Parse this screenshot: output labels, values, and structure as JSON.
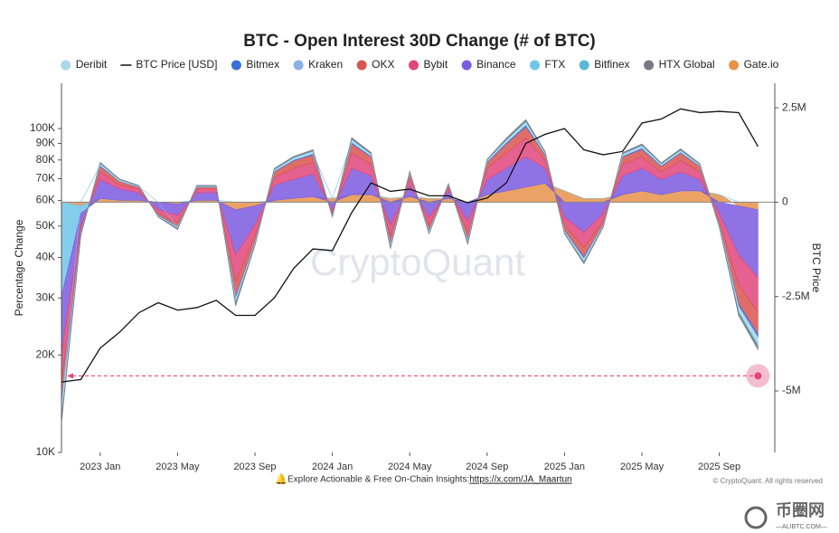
{
  "chart_data": {
    "type": "area",
    "title": "BTC - Open Interest 30D Change (# of BTC)",
    "y_label": "Percentage Change",
    "y2_label": "BTC Price",
    "watermark": "CryptoQuant",
    "footnote": "Explore Actionable & Free On-Chain Insights: ",
    "footnote_link": "https://x.com/JA_Maartun",
    "copyright": "© CryptoQuant. All rights reserved",
    "logo": "币圈网",
    "logo_sub": "—ALIBTC.COM—",
    "log_y": true,
    "grid": false,
    "x": [
      "2022 Nov",
      "2022 Dec",
      "2023 Jan",
      "2023 Feb",
      "2023 Mar",
      "2023 Apr",
      "2023 May",
      "2023 Jun",
      "2023 Jul",
      "2023 Aug",
      "2023 Sep",
      "2023 Oct",
      "2023 Nov",
      "2023 Dec",
      "2024 Jan",
      "2024 Feb",
      "2024 Mar",
      "2024 Apr",
      "2024 May",
      "2024 Jun",
      "2024 Jul",
      "2024 Aug",
      "2024 Sep",
      "2024 Oct",
      "2024 Nov",
      "2024 Dec",
      "2025 Jan",
      "2025 Feb",
      "2025 Mar",
      "2025 Apr",
      "2025 May",
      "2025 Jun",
      "2025 Jul",
      "2025 Aug",
      "2025 Sep",
      "2025 Oct",
      "2025 Nov"
    ],
    "xticks": [
      "2023 Jan",
      "2023 May",
      "2023 Sep",
      "2024 Jan",
      "2024 May",
      "2024 Sep",
      "2025 Jan",
      "2025 May",
      "2025 Sep"
    ],
    "ylim": [
      10000,
      138000
    ],
    "yticks": [
      {
        "value": 10000,
        "label": "10K"
      },
      {
        "value": 20000,
        "label": "20K"
      },
      {
        "value": 30000,
        "label": "30K"
      },
      {
        "value": 40000,
        "label": "40K"
      },
      {
        "value": 50000,
        "label": "50K"
      },
      {
        "value": 60000,
        "label": "60K"
      },
      {
        "value": 70000,
        "label": "70K"
      },
      {
        "value": 80000,
        "label": "80K"
      },
      {
        "value": 90000,
        "label": "90K"
      },
      {
        "value": 100000,
        "label": "100K"
      }
    ],
    "y2lim": [
      -6630000,
      3150000
    ],
    "y2ticks": [
      {
        "value": 2500000,
        "label": "2.5M"
      },
      0,
      {
        "value": -2500000,
        "label": "-2.5M"
      },
      {
        "value": -5000000,
        "label": "-5M"
      }
    ],
    "reference_line": {
      "axis": "y2",
      "value": -4600000,
      "color": "#e0457b"
    },
    "series": [
      {
        "name": "Deribit",
        "color": "#a8d8ea",
        "axis": "y2",
        "values": [
          -300000,
          -50000,
          50000,
          30000,
          20000,
          -20000,
          -30000,
          20000,
          20000,
          -100000,
          -50000,
          40000,
          50000,
          60000,
          -20000,
          70000,
          50000,
          -60000,
          30000,
          -40000,
          20000,
          -50000,
          40000,
          60000,
          80000,
          40000,
          -40000,
          -80000,
          -30000,
          50000,
          60000,
          40000,
          50000,
          30000,
          -30000,
          -130000,
          -180000
        ]
      },
      {
        "name": "BTC Price [USD]",
        "color": "#111111",
        "type": "line",
        "axis": "y",
        "values": [
          16500,
          16800,
          21000,
          23500,
          27000,
          29000,
          27500,
          28000,
          29500,
          26500,
          26500,
          30000,
          37000,
          42500,
          42000,
          55000,
          68000,
          64000,
          65000,
          62000,
          62000,
          59000,
          61000,
          68000,
          90000,
          96000,
          100000,
          86000,
          83000,
          85000,
          104000,
          107000,
          115000,
          112000,
          113000,
          112000,
          88000
        ]
      },
      {
        "name": "Bitmex",
        "color": "#3d6fd8",
        "axis": "y2",
        "values": [
          -100000,
          -20000,
          20000,
          10000,
          10000,
          -10000,
          -10000,
          10000,
          10000,
          -50000,
          -20000,
          20000,
          20000,
          30000,
          -10000,
          30000,
          20000,
          -30000,
          10000,
          -20000,
          10000,
          -20000,
          20000,
          30000,
          40000,
          20000,
          -20000,
          -40000,
          -10000,
          20000,
          30000,
          20000,
          20000,
          10000,
          -10000,
          -60000,
          -80000
        ]
      },
      {
        "name": "Kraken",
        "color": "#8fb0e6",
        "axis": "y2",
        "values": [
          -20000,
          0,
          5000,
          5000,
          0,
          0,
          -5000,
          5000,
          0,
          -10000,
          -5000,
          5000,
          5000,
          10000,
          0,
          10000,
          5000,
          -5000,
          5000,
          -5000,
          0,
          -5000,
          5000,
          10000,
          10000,
          5000,
          -5000,
          -10000,
          -5000,
          5000,
          10000,
          5000,
          5000,
          5000,
          -5000,
          -15000,
          -20000
        ]
      },
      {
        "name": "OKX",
        "color": "#d9534f",
        "axis": "y2",
        "values": [
          -500000,
          -100000,
          150000,
          100000,
          50000,
          -50000,
          -100000,
          50000,
          50000,
          -400000,
          -150000,
          150000,
          200000,
          200000,
          -50000,
          250000,
          200000,
          -200000,
          100000,
          -150000,
          50000,
          -200000,
          150000,
          250000,
          300000,
          150000,
          -150000,
          -250000,
          -100000,
          200000,
          200000,
          150000,
          200000,
          150000,
          -100000,
          -500000,
          -600000
        ]
      },
      {
        "name": "Bybit",
        "color": "#e0457b",
        "axis": "y2",
        "values": [
          -800000,
          -100000,
          200000,
          100000,
          100000,
          -100000,
          -200000,
          100000,
          100000,
          -700000,
          -300000,
          200000,
          300000,
          300000,
          -100000,
          400000,
          300000,
          -300000,
          200000,
          -200000,
          100000,
          -300000,
          300000,
          400000,
          500000,
          200000,
          -200000,
          -400000,
          -200000,
          300000,
          300000,
          200000,
          300000,
          200000,
          -200000,
          -800000,
          -900000
        ]
      },
      {
        "name": "Binance",
        "color": "#7b5be0",
        "axis": "y2",
        "values": [
          -1500000,
          -300000,
          500000,
          300000,
          200000,
          -200000,
          -300000,
          200000,
          200000,
          -1200000,
          -500000,
          400000,
          500000,
          600000,
          -200000,
          700000,
          500000,
          -600000,
          300000,
          -400000,
          200000,
          -500000,
          400000,
          600000,
          800000,
          400000,
          -400000,
          -800000,
          -300000,
          500000,
          600000,
          400000,
          500000,
          300000,
          -300000,
          -1300000,
          -1800000
        ]
      },
      {
        "name": "FTX",
        "color": "#6ec6e8",
        "axis": "y2",
        "values": [
          -2500000,
          -200000,
          0,
          0,
          0,
          0,
          0,
          0,
          0,
          0,
          0,
          0,
          0,
          0,
          0,
          0,
          0,
          0,
          0,
          0,
          0,
          0,
          0,
          0,
          0,
          0,
          0,
          0,
          0,
          0,
          0,
          0,
          0,
          0,
          0,
          0,
          0
        ]
      },
      {
        "name": "Bitfinex",
        "color": "#5bb8d8",
        "axis": "y2",
        "values": [
          -50000,
          -10000,
          10000,
          10000,
          5000,
          -5000,
          -10000,
          5000,
          5000,
          -30000,
          -10000,
          10000,
          15000,
          15000,
          -5000,
          20000,
          15000,
          -15000,
          10000,
          -10000,
          5000,
          -15000,
          10000,
          20000,
          25000,
          10000,
          -10000,
          -20000,
          -10000,
          15000,
          15000,
          10000,
          15000,
          10000,
          -10000,
          -40000,
          -50000
        ]
      },
      {
        "name": "HTX Global",
        "color": "#777a86",
        "axis": "y2",
        "values": [
          -80000,
          -20000,
          20000,
          10000,
          10000,
          -10000,
          -20000,
          10000,
          10000,
          -60000,
          -20000,
          20000,
          25000,
          25000,
          -10000,
          30000,
          25000,
          -25000,
          15000,
          -15000,
          10000,
          -25000,
          15000,
          30000,
          35000,
          15000,
          -15000,
          -30000,
          -15000,
          25000,
          25000,
          15000,
          25000,
          15000,
          -15000,
          -60000,
          -80000
        ]
      },
      {
        "name": "Gate.io",
        "color": "#e8924a",
        "axis": "y2",
        "values": [
          0,
          -100000,
          100000,
          50000,
          50000,
          0,
          -50000,
          50000,
          50000,
          -200000,
          -100000,
          50000,
          100000,
          150000,
          100000,
          200000,
          200000,
          100000,
          150000,
          100000,
          100000,
          0,
          200000,
          300000,
          400000,
          500000,
          300000,
          100000,
          100000,
          200000,
          300000,
          200000,
          300000,
          300000,
          200000,
          -100000,
          -200000
        ]
      }
    ]
  }
}
